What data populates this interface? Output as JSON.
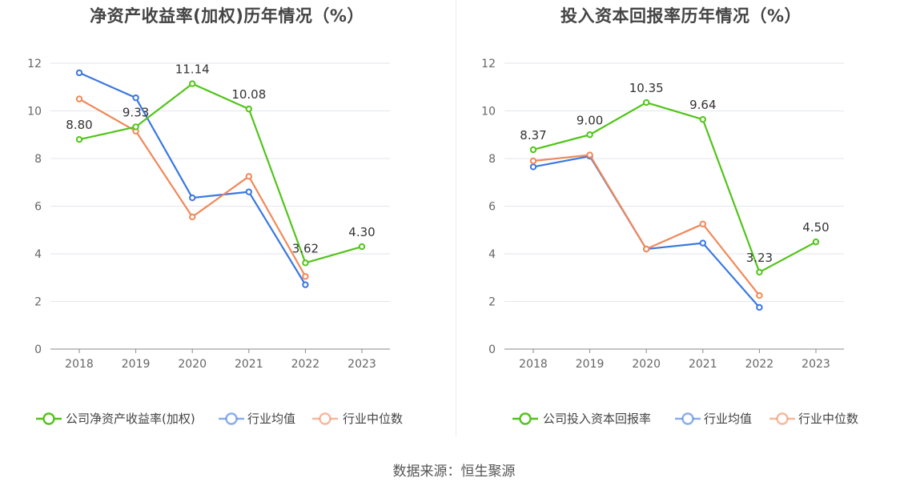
{
  "source": "数据来源：恒生聚源",
  "colors": {
    "company": "#52c41a",
    "avg": "#3a78e0",
    "median": "#f0895a"
  },
  "chart_data": [
    {
      "type": "line",
      "title": "净资产收益率(加权)历年情况（%）",
      "categories": [
        "2018",
        "2019",
        "2020",
        "2021",
        "2022",
        "2023"
      ],
      "ylim": [
        0,
        12
      ],
      "yticks": [
        "0",
        "2",
        "4",
        "6",
        "8",
        "10",
        "12"
      ],
      "grid": true,
      "legend_position": "bottom",
      "series": [
        {
          "name": "公司净资产收益率(加权)",
          "color": "#52c41a",
          "values": [
            8.8,
            9.33,
            11.14,
            10.08,
            3.62,
            4.3
          ],
          "labels": [
            "8.80",
            "9.33",
            "11.14",
            "10.08",
            "3.62",
            "4.30"
          ]
        },
        {
          "name": "行业均值",
          "color": "#3a78e0",
          "values": [
            11.6,
            10.55,
            6.35,
            6.6,
            2.7,
            null
          ]
        },
        {
          "name": "行业中位数",
          "color": "#f0895a",
          "values": [
            10.5,
            9.15,
            5.55,
            7.25,
            3.05,
            null
          ]
        }
      ]
    },
    {
      "type": "line",
      "title": "投入资本回报率历年情况（%）",
      "categories": [
        "2018",
        "2019",
        "2020",
        "2021",
        "2022",
        "2023"
      ],
      "ylim": [
        0,
        12
      ],
      "yticks": [
        "0",
        "2",
        "4",
        "6",
        "8",
        "10",
        "12"
      ],
      "grid": true,
      "legend_position": "bottom",
      "series": [
        {
          "name": "公司投入资本回报率",
          "color": "#52c41a",
          "values": [
            8.37,
            9.0,
            10.35,
            9.64,
            3.23,
            4.5
          ],
          "labels": [
            "8.37",
            "9.00",
            "10.35",
            "9.64",
            "3.23",
            "4.50"
          ]
        },
        {
          "name": "行业均值",
          "color": "#3a78e0",
          "values": [
            7.65,
            8.1,
            4.2,
            4.45,
            1.75,
            null
          ]
        },
        {
          "name": "行业中位数",
          "color": "#f0895a",
          "values": [
            7.9,
            8.15,
            4.2,
            5.25,
            2.25,
            null
          ]
        }
      ]
    }
  ]
}
